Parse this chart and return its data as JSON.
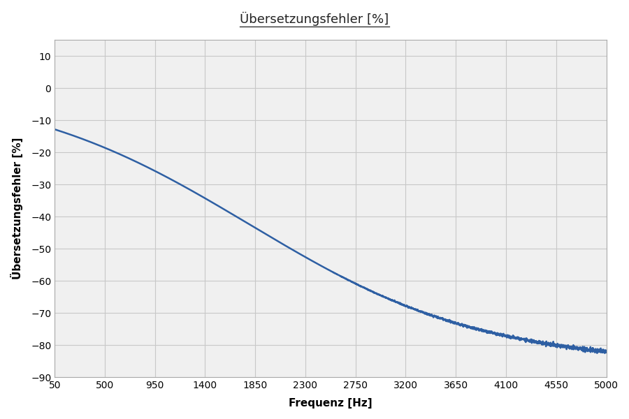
{
  "title": "Übersetzungsfehler [%]",
  "xlabel": "Frequenz [Hz]",
  "ylabel": "Übersetzungsfehler [%]",
  "x_ticks": [
    50,
    500,
    950,
    1400,
    1850,
    2300,
    2750,
    3200,
    3650,
    4100,
    4550,
    5000
  ],
  "y_ticks": [
    -90,
    -80,
    -70,
    -60,
    -50,
    -40,
    -30,
    -20,
    -10,
    0,
    10
  ],
  "xlim": [
    50,
    5000
  ],
  "ylim": [
    -90,
    15
  ],
  "line_color": "#2e5fa3",
  "line_width": 1.8,
  "background_color": "#ffffff",
  "plot_bg_color": "#f0f0f0",
  "grid_color": "#c8c8c8",
  "title_fontsize": 13,
  "axis_label_fontsize": 11,
  "tick_fontsize": 10
}
